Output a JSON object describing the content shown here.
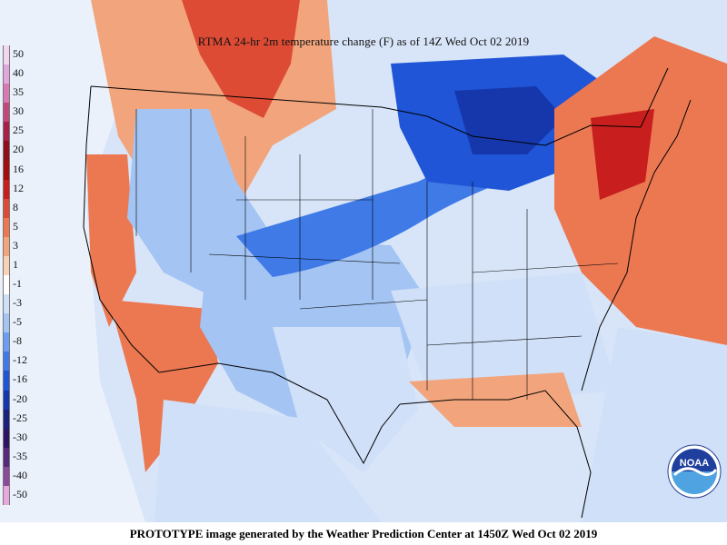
{
  "title": "RTMA 24-hr 2m temperature change (F) as of 14Z Wed Oct 02 2019",
  "footer": "PROTOTYPE image generated by the Weather Prediction Center at 1450Z Wed Oct 02 2019",
  "logo_text": "NOAA",
  "legend": {
    "items": [
      {
        "label": "50",
        "color": "#f2d6f0"
      },
      {
        "label": "40",
        "color": "#e3a6dc"
      },
      {
        "label": "35",
        "color": "#d879b4"
      },
      {
        "label": "30",
        "color": "#c2477a"
      },
      {
        "label": "25",
        "color": "#a81f4a"
      },
      {
        "label": "20",
        "color": "#8e0f1a"
      },
      {
        "label": "16",
        "color": "#a30d0d"
      },
      {
        "label": "12",
        "color": "#c81e1e"
      },
      {
        "label": "8",
        "color": "#dd4b34"
      },
      {
        "label": "5",
        "color": "#ec7852"
      },
      {
        "label": "3",
        "color": "#f2a57c"
      },
      {
        "label": "1",
        "color": "#f8d2b6"
      },
      {
        "label": "-1",
        "color": "#ffffff"
      },
      {
        "label": "-3",
        "color": "#cfe0f8"
      },
      {
        "label": "-5",
        "color": "#a4c4f3"
      },
      {
        "label": "-8",
        "color": "#6a9ef0"
      },
      {
        "label": "-12",
        "color": "#3f7ae6"
      },
      {
        "label": "-16",
        "color": "#1f55d6"
      },
      {
        "label": "-20",
        "color": "#1637ab"
      },
      {
        "label": "-25",
        "color": "#18227c"
      },
      {
        "label": "-30",
        "color": "#2d1566"
      },
      {
        "label": "-35",
        "color": "#57297e"
      },
      {
        "label": "-40",
        "color": "#8c4a9c"
      },
      {
        "label": "-50",
        "color": "#e7a9dd"
      }
    ]
  }
}
